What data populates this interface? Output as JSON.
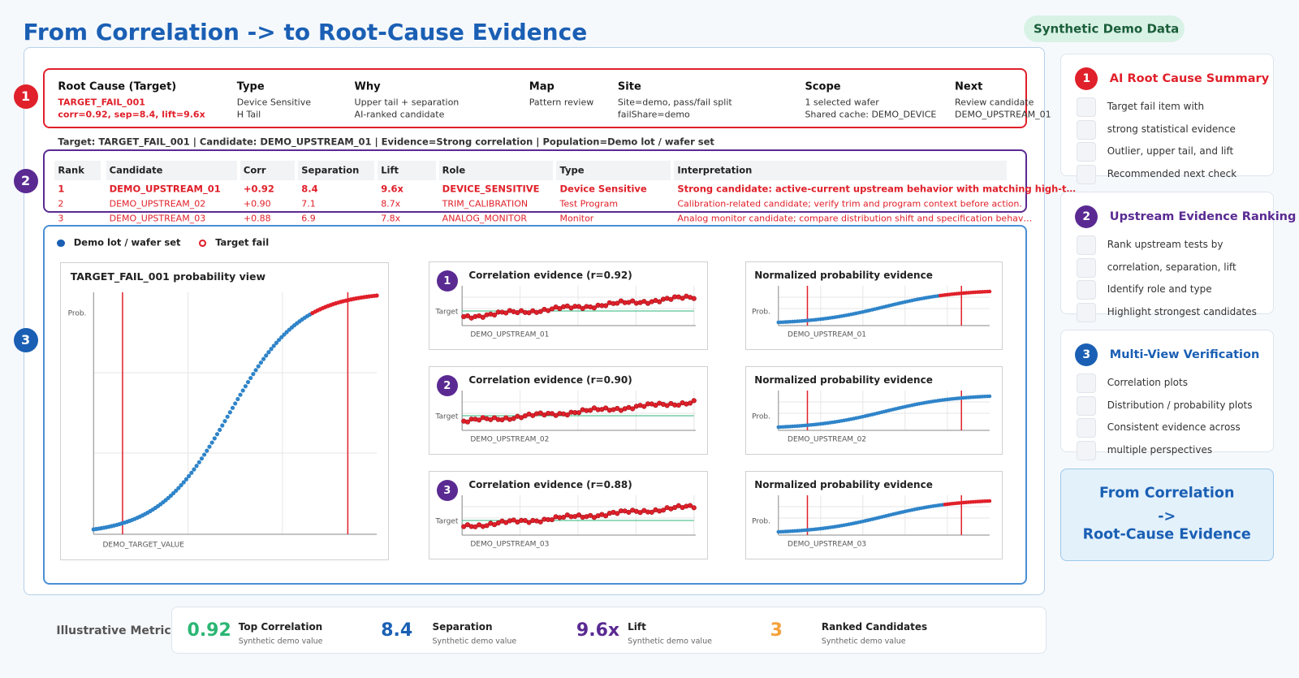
{
  "header": {
    "title": "From Correlation -> to Root-Cause Evidence",
    "badge": "Synthetic Demo Data"
  },
  "summary": {
    "marker": "1",
    "columns": [
      {
        "heading": "Root Cause (Target)",
        "lines": [
          "TARGET_FAIL_001",
          "corr=0.92, sep=8.4, lift=9.6x"
        ]
      },
      {
        "heading": "Type",
        "lines": [
          "Device Sensitive",
          "H Tail"
        ]
      },
      {
        "heading": "Why",
        "lines": [
          "Upper tail + separation",
          "AI-ranked candidate"
        ]
      },
      {
        "heading": "Map",
        "lines": [
          "Pattern review"
        ]
      },
      {
        "heading": "Site",
        "lines": [
          "Site=demo, pass/fail split",
          "failShare=demo"
        ]
      },
      {
        "heading": "Scope",
        "lines": [
          "1 selected wafer",
          "Shared cache: DEMO_DEVICE"
        ]
      },
      {
        "heading": "Next",
        "lines": [
          "Review candidate",
          "DEMO_UPSTREAM_01"
        ]
      }
    ]
  },
  "context": "Target: TARGET_FAIL_001 | Candidate: DEMO_UPSTREAM_01 | Evidence=Strong correlation | Population=Demo lot / wafer set",
  "ranking": {
    "marker": "2",
    "headers": [
      "Rank",
      "Candidate",
      "Corr",
      "Separation",
      "Lift",
      "Role",
      "Type",
      "Interpretation"
    ],
    "rows": [
      [
        "1",
        "DEMO_UPSTREAM_01",
        "+0.92",
        "8.4",
        "9.6x",
        "DEVICE_SENSITIVE",
        "Device Sensitive",
        "Strong candidate: active-current upstream behavior with matching high-t…"
      ],
      [
        "2",
        "DEMO_UPSTREAM_02",
        "+0.90",
        "7.1",
        "8.7x",
        "TRIM_CALIBRATION",
        "Test Program",
        "Calibration-related candidate; verify trim and program context before action."
      ],
      [
        "3",
        "DEMO_UPSTREAM_03",
        "+0.88",
        "6.9",
        "7.8x",
        "ANALOG_MONITOR",
        "Monitor",
        "Analog monitor candidate; compare distribution shift and specification behav…"
      ]
    ]
  },
  "verification": {
    "marker": "3",
    "legend": [
      "Demo lot / wafer set",
      "Target fail"
    ],
    "main_plot": {
      "title": "TARGET_FAIL_001 probability view",
      "y_label": "Prob.",
      "x_label": "DEMO_TARGET_VALUE"
    },
    "rows": [
      {
        "marker": "1",
        "correlation": {
          "title": "Correlation evidence (r=0.92)",
          "y_label": "Target",
          "x_label": "DEMO_UPSTREAM_01"
        },
        "probability": {
          "title": "Normalized probability evidence",
          "y_label": "Prob.",
          "x_label": "DEMO_UPSTREAM_01"
        }
      },
      {
        "marker": "2",
        "correlation": {
          "title": "Correlation evidence (r=0.90)",
          "y_label": "Target",
          "x_label": "DEMO_UPSTREAM_02"
        },
        "probability": {
          "title": "Normalized probability evidence",
          "y_label": "Prob.",
          "x_label": "DEMO_UPSTREAM_02"
        }
      },
      {
        "marker": "3",
        "correlation": {
          "title": "Correlation evidence (r=0.88)",
          "y_label": "Target",
          "x_label": "DEMO_UPSTREAM_03"
        },
        "probability": {
          "title": "Normalized probability evidence",
          "y_label": "Prob.",
          "x_label": "DEMO_UPSTREAM_03"
        }
      }
    ]
  },
  "sidebar": {
    "panels": [
      {
        "marker": "1",
        "title": "AI Root Cause Summary",
        "items": [
          "Target fail item with",
          "strong statistical evidence",
          "Outlier, upper tail, and lift",
          "Recommended next check"
        ]
      },
      {
        "marker": "2",
        "title": "Upstream Evidence Ranking",
        "items": [
          "Rank upstream tests by",
          "correlation, separation, lift",
          "Identify role and type",
          "Highlight strongest candidates"
        ]
      },
      {
        "marker": "3",
        "title": "Multi-View Verification",
        "items": [
          "Correlation plots",
          "Distribution / probability plots",
          "Consistent evidence across",
          "multiple perspectives"
        ]
      }
    ],
    "callout": [
      "From Correlation",
      "->",
      "Root-Cause Evidence"
    ]
  },
  "metrics": {
    "label": "Illustrative Metrics",
    "items": [
      {
        "value": "0.92",
        "title": "Top Correlation",
        "note": "Synthetic demo value"
      },
      {
        "value": "8.4",
        "title": "Separation",
        "note": "Synthetic demo value"
      },
      {
        "value": "9.6x",
        "title": "Lift",
        "note": "Synthetic demo value"
      },
      {
        "value": "3",
        "title": "Ranked Candidates",
        "note": "Synthetic demo value"
      }
    ]
  }
}
